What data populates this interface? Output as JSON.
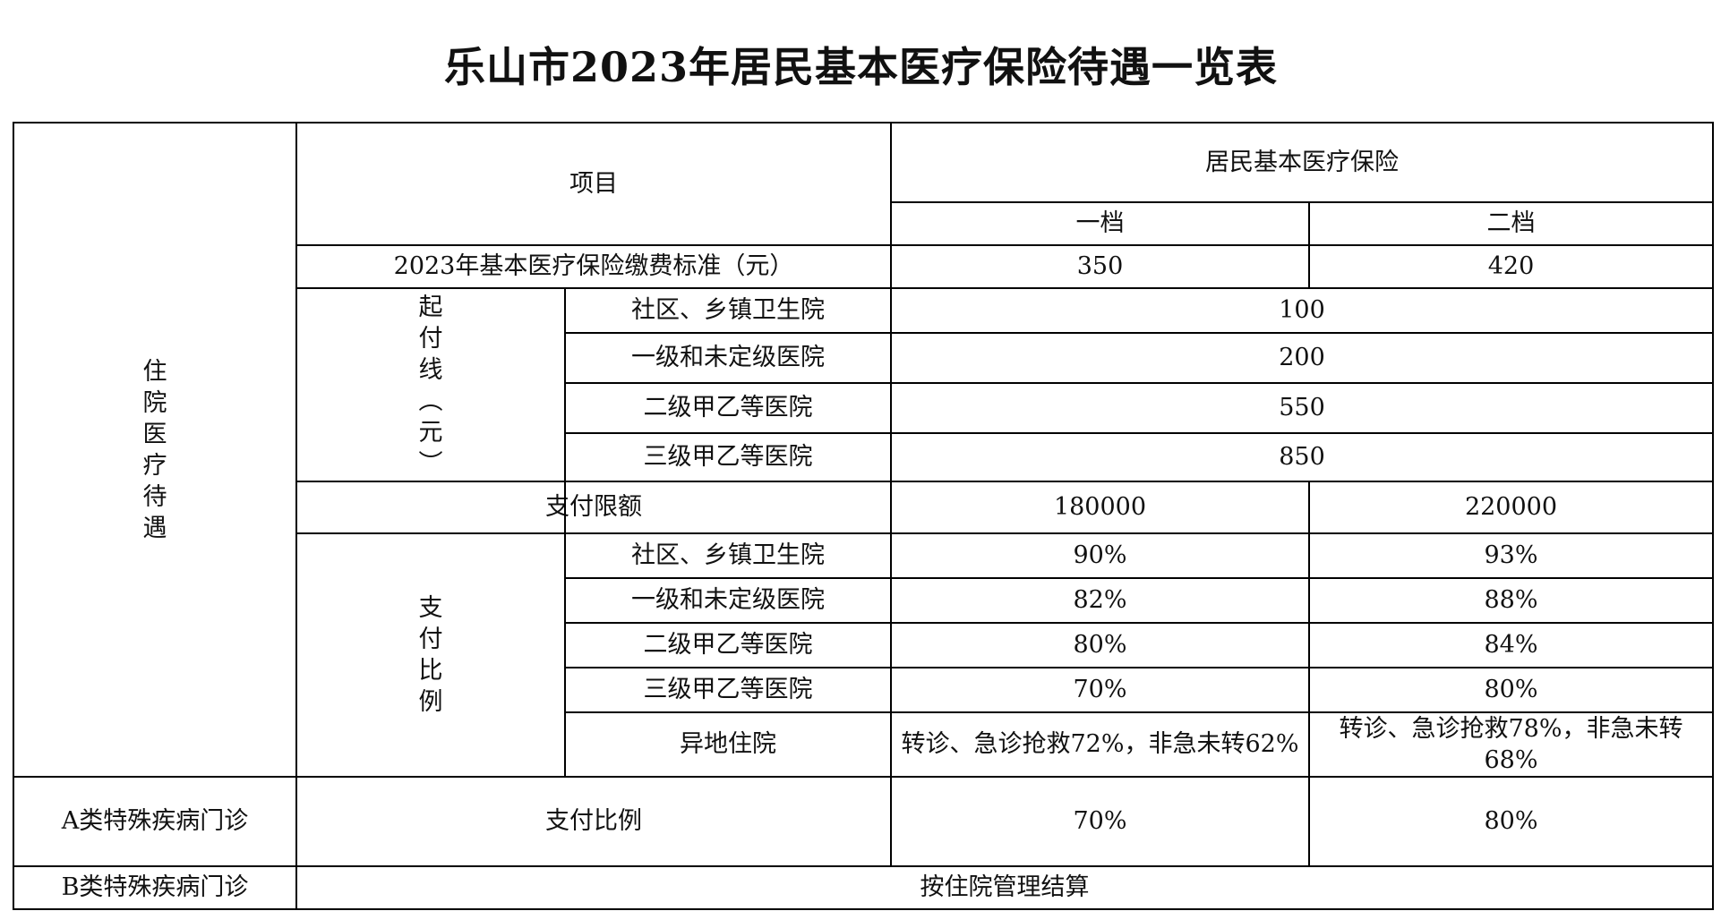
{
  "title": "乐山市2023年居民基本医疗保险待遇一览表",
  "header": {
    "item": "项目",
    "insurance": "居民基本医疗保险",
    "tier1": "一档",
    "tier2": "二档"
  },
  "contribution": {
    "label": "2023年基本医疗保险缴费标准（元）",
    "tier1": "350",
    "tier2": "420"
  },
  "inpatient": {
    "label_chars": [
      "住",
      "院",
      "医",
      "疗",
      "待",
      "遇"
    ],
    "deductible": {
      "label_chars": [
        "起",
        "付",
        "线",
        "︵",
        "元",
        "︶"
      ],
      "rows": [
        {
          "hospital": "社区、乡镇卫生院",
          "value": "100"
        },
        {
          "hospital": "一级和未定级医院",
          "value": "200"
        },
        {
          "hospital": "二级甲乙等医院",
          "value": "550"
        },
        {
          "hospital": "三级甲乙等医院",
          "value": "850"
        }
      ]
    },
    "payment_limit": {
      "label": "支付限额",
      "tier1": "180000",
      "tier2": "220000"
    },
    "payment_ratio": {
      "label_chars": [
        "支",
        "付",
        "比",
        "例"
      ],
      "rows": [
        {
          "hospital": "社区、乡镇卫生院",
          "tier1": "90%",
          "tier2": "93%"
        },
        {
          "hospital": "一级和未定级医院",
          "tier1": "82%",
          "tier2": "88%"
        },
        {
          "hospital": "二级甲乙等医院",
          "tier1": "80%",
          "tier2": "84%"
        },
        {
          "hospital": "三级甲乙等医院",
          "tier1": "70%",
          "tier2": "80%"
        },
        {
          "hospital": "异地住院",
          "tier1": "转诊、急诊抢救72%，非急未转62%",
          "tier2": "转诊、急诊抢救78%，非急未转68%"
        }
      ]
    }
  },
  "class_a": {
    "label": "A类特殊疾病门诊",
    "item": "支付比例",
    "tier1": "70%",
    "tier2": "80%"
  },
  "class_b": {
    "label": "B类特殊疾病门诊",
    "value": "按住院管理结算"
  }
}
